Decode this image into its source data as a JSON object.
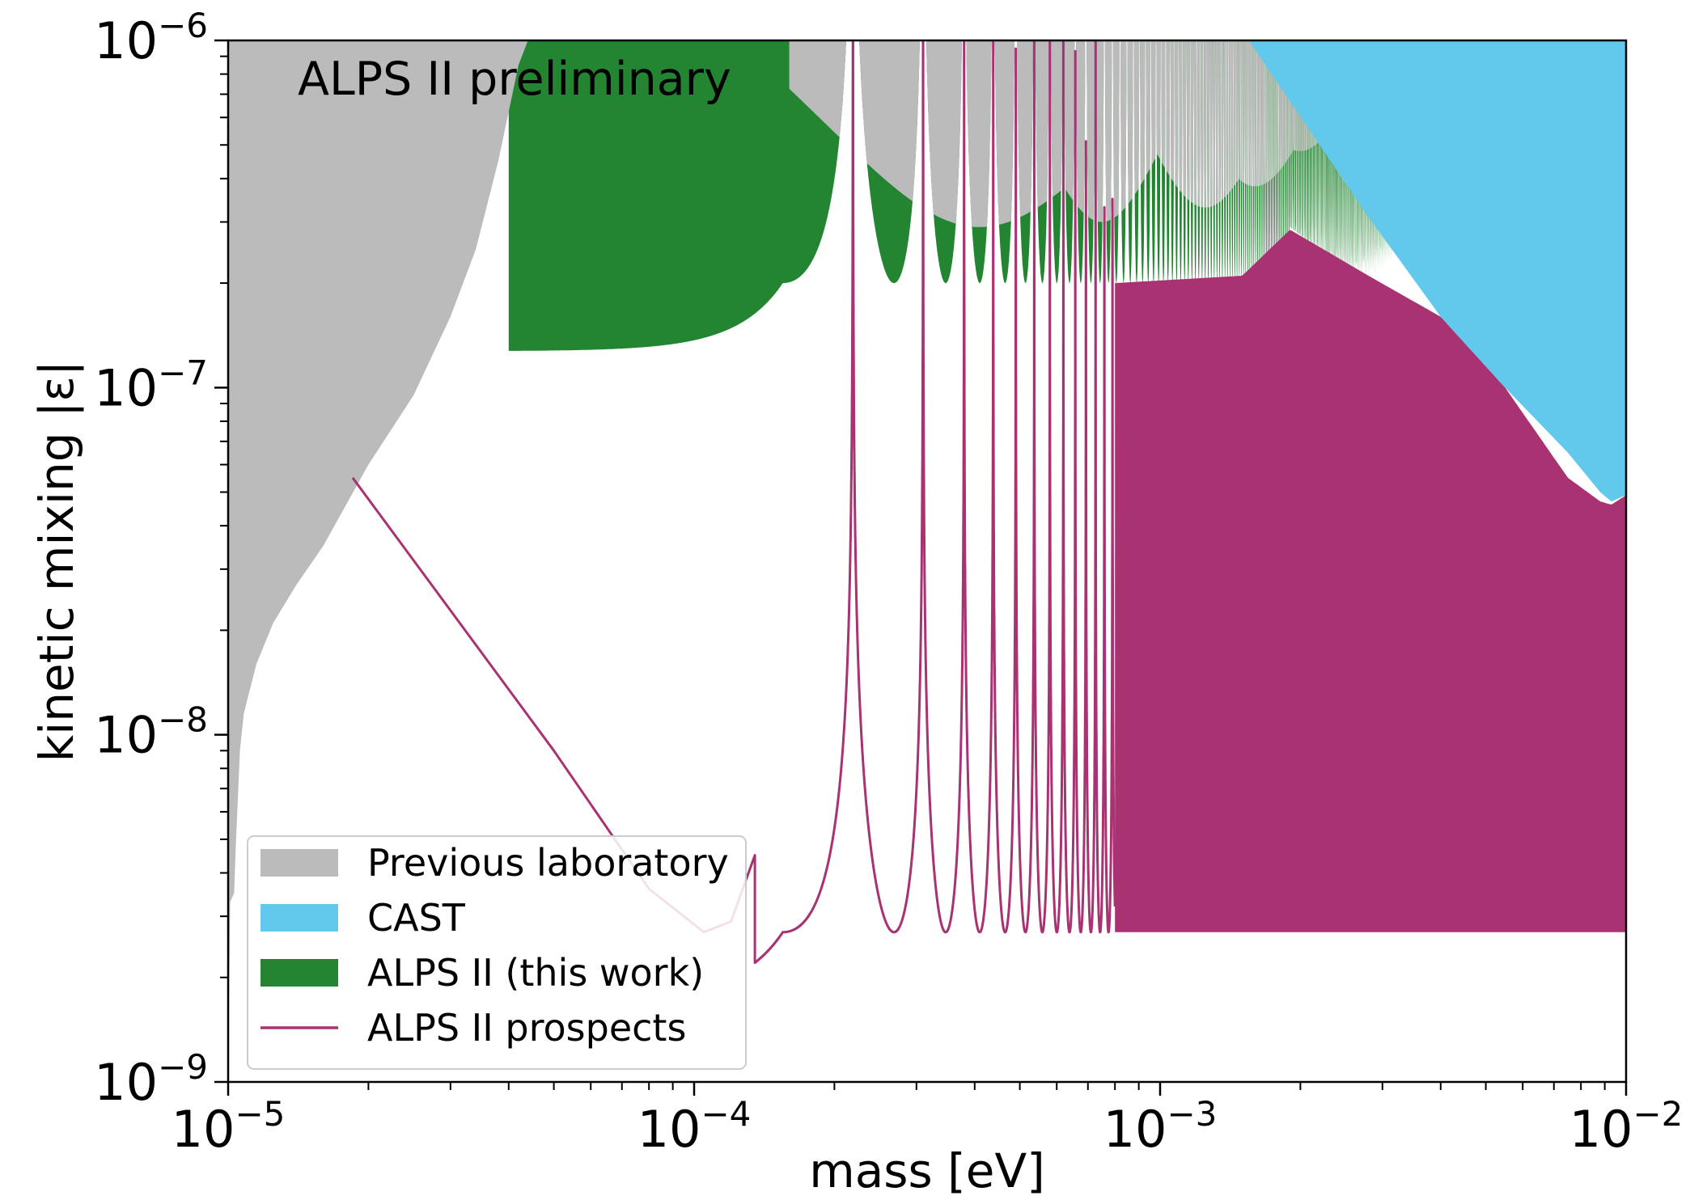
{
  "chart_data": {
    "type": "area",
    "title": "",
    "annotation": "ALPS II preliminary",
    "xlabel": "mass [eV]",
    "ylabel": "kinetic mixing |ε|",
    "x_scale": "log",
    "y_scale": "log",
    "xlim": [
      1e-05,
      0.01
    ],
    "ylim": [
      1e-09,
      1e-06
    ],
    "x_ticks": [
      {
        "value": 1e-05,
        "base": "10",
        "exp": "−5"
      },
      {
        "value": 0.0001,
        "base": "10",
        "exp": "−4"
      },
      {
        "value": 0.001,
        "base": "10",
        "exp": "−3"
      },
      {
        "value": 0.01,
        "base": "10",
        "exp": "−2"
      }
    ],
    "y_ticks": [
      {
        "value": 1e-09,
        "base": "10",
        "exp": "−9"
      },
      {
        "value": 1e-08,
        "base": "10",
        "exp": "−8"
      },
      {
        "value": 1e-07,
        "base": "10",
        "exp": "−7"
      },
      {
        "value": 1e-06,
        "base": "10",
        "exp": "−6"
      }
    ],
    "grid": false,
    "legend_position": "lower-left",
    "legend": [
      {
        "label": "Previous laboratory",
        "color": "#bbbbbb",
        "kind": "patch"
      },
      {
        "label": "CAST",
        "color": "#62c8ec",
        "kind": "patch"
      },
      {
        "label": "ALPS II (this work)",
        "color": "#238532",
        "kind": "patch"
      },
      {
        "label": "ALPS II prospects",
        "color": "#a83272",
        "kind": "line"
      }
    ],
    "series": [
      {
        "name": "Previous laboratory",
        "kind": "region",
        "color": "#bbbbbb",
        "left_boundary": [
          [
            1.01e-05,
            3.3e-09
          ],
          [
            1.03e-05,
            3.5e-09
          ],
          [
            1.04e-05,
            5e-09
          ],
          [
            1.06e-05,
            9e-09
          ],
          [
            1.08e-05,
            1.15e-08
          ],
          [
            1.15e-05,
            1.6e-08
          ],
          [
            1.25e-05,
            2.1e-08
          ],
          [
            1.4e-05,
            2.7e-08
          ],
          [
            1.6e-05,
            3.5e-08
          ],
          [
            2e-05,
            6e-08
          ],
          [
            2.5e-05,
            9.5e-08
          ],
          [
            3e-05,
            1.6e-07
          ],
          [
            3.4e-05,
            2.5e-07
          ],
          [
            3.8e-05,
            4.5e-07
          ],
          [
            4.2e-05,
            8.5e-07
          ],
          [
            4.4e-05,
            1e-06
          ]
        ],
        "upper_valleys": [
          [
            0.00041,
            2.9e-07
          ],
          [
            0.00075,
            3e-07
          ],
          [
            0.00125,
            3.3e-07
          ],
          [
            0.0016,
            3.8e-07
          ],
          [
            0.002,
            4.8e-07
          ],
          [
            0.0025,
            5.5e-07
          ],
          [
            0.003,
            6.5e-07
          ]
        ]
      },
      {
        "name": "CAST",
        "kind": "region",
        "color": "#62c8ec",
        "boundary": [
          [
            0.00155,
            1e-06
          ],
          [
            0.0028,
            3.1e-07
          ],
          [
            0.004,
            1.6e-07
          ],
          [
            0.0055,
            1e-07
          ],
          [
            0.0075,
            6.5e-08
          ],
          [
            0.0088,
            5e-08
          ],
          [
            0.0093,
            4.7e-08
          ],
          [
            0.01,
            4.9e-08
          ]
        ]
      },
      {
        "name": "ALPS II (this work)",
        "kind": "resonant-region",
        "color": "#238532",
        "floor": 2e-07,
        "first_resonance": 0.000155,
        "right_boundary": [
          [
            0.0019,
            2.9e-07
          ],
          [
            0.0022,
            2.5e-07
          ],
          [
            0.0026,
            2e-07
          ],
          [
            0.0029,
            2.05e-07
          ],
          [
            0.0034,
            2.6e-07
          ]
        ]
      },
      {
        "name": "ALPS II prospects",
        "kind": "resonant-line",
        "color": "#a83272",
        "floor": 2.7e-09,
        "first_resonance": 0.000155,
        "left_branch": [
          [
            1.85e-05,
            5.5e-08
          ],
          [
            5e-05,
            9e-09
          ],
          [
            8e-05,
            3.6e-09
          ],
          [
            0.000105,
            2.7e-09
          ],
          [
            0.00012,
            2.9e-09
          ],
          [
            0.000135,
            4.5e-09
          ]
        ],
        "filled_above_mass": 0.0008,
        "top_boundary": [
          [
            0.0008,
            2e-07
          ],
          [
            0.0015,
            2.1e-07
          ],
          [
            0.0019,
            2.85e-07
          ],
          [
            0.0028,
            2.1e-07
          ],
          [
            0.004,
            1.6e-07
          ],
          [
            0.0055,
            1e-07
          ],
          [
            0.0075,
            5.5e-08
          ],
          [
            0.0088,
            4.7e-08
          ],
          [
            0.0093,
            4.6e-08
          ],
          [
            0.01,
            4.9e-08
          ]
        ]
      }
    ]
  }
}
